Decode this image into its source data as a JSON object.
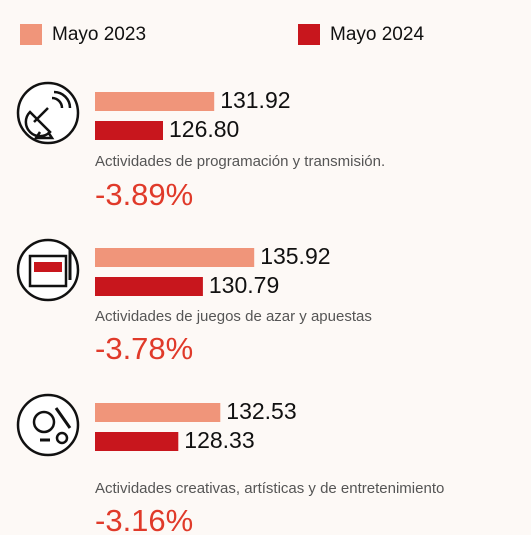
{
  "chart_data": {
    "type": "bar",
    "orientation": "horizontal",
    "categories": [
      "Actividades de programación y transmisión.",
      "Actividades de juegos de azar y apuestas",
      "Actividades creativas, artísticas y de entretenimiento"
    ],
    "series": [
      {
        "name": "Mayo 2023",
        "color": "#f0957a",
        "values": [
          131.92,
          135.92,
          132.53
        ]
      },
      {
        "name": "Mayo 2024",
        "color": "#c8161d",
        "values": [
          126.8,
          130.79,
          128.33
        ],
        "value_labels": [
          "126.80",
          "130.79",
          "128.33"
        ]
      }
    ],
    "changes": [
      -3.89,
      -3.78,
      -3.16
    ],
    "change_labels": [
      "-3.89%",
      "-3.78%",
      "-3.16%"
    ],
    "change_color": "#e03a2a",
    "xlim": [
      120,
      140
    ]
  }
}
